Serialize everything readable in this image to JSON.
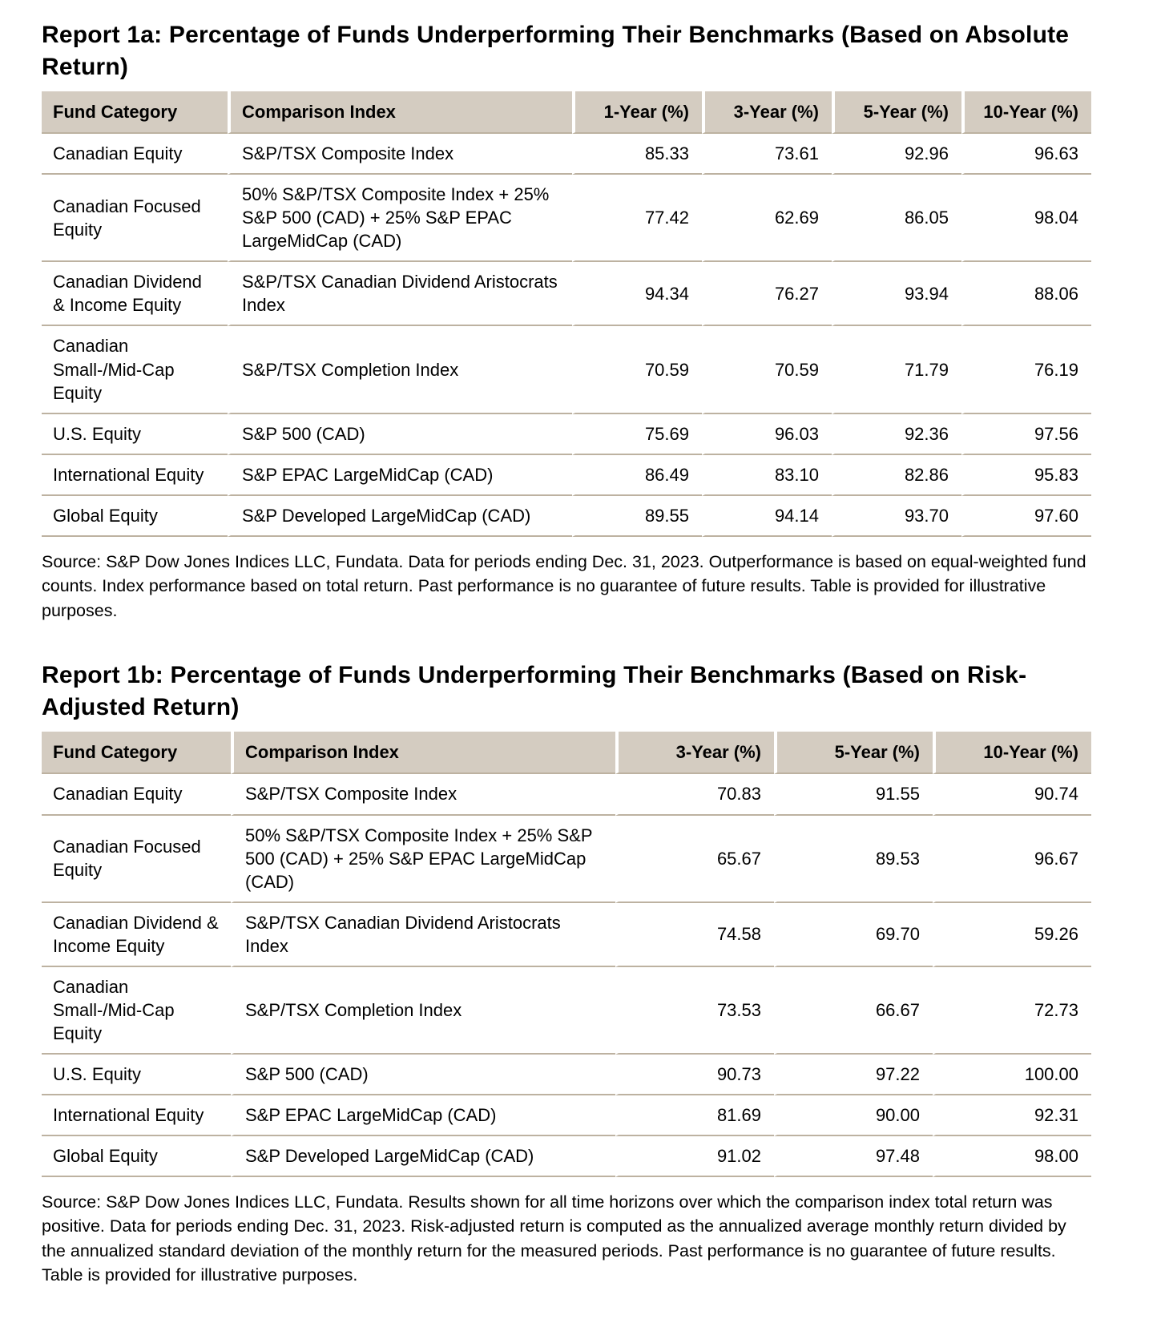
{
  "report_1a": {
    "title": "Report 1a: Percentage of Funds Underperforming Their Benchmarks (Based on Absolute Return)",
    "columns": [
      "Fund Category",
      "Comparison Index",
      "1-Year (%)",
      "3-Year (%)",
      "5-Year (%)",
      "10-Year (%)"
    ],
    "rows": [
      {
        "category": "Canadian Equity",
        "index": "S&P/TSX Composite Index",
        "values": [
          "85.33",
          "73.61",
          "92.96",
          "96.63"
        ]
      },
      {
        "category": "Canadian Focused Equity",
        "index": "50% S&P/TSX Composite Index + 25% S&P 500 (CAD) + 25% S&P EPAC LargeMidCap (CAD)",
        "values": [
          "77.42",
          "62.69",
          "86.05",
          "98.04"
        ]
      },
      {
        "category": "Canadian Dividend & Income Equity",
        "index": "S&P/TSX Canadian Dividend Aristocrats Index",
        "values": [
          "94.34",
          "76.27",
          "93.94",
          "88.06"
        ]
      },
      {
        "category": "Canadian Small-/Mid-Cap Equity",
        "index": "S&P/TSX Completion Index",
        "values": [
          "70.59",
          "70.59",
          "71.79",
          "76.19"
        ]
      },
      {
        "category": "U.S. Equity",
        "index": "S&P 500 (CAD)",
        "values": [
          "75.69",
          "96.03",
          "92.36",
          "97.56"
        ]
      },
      {
        "category": "International Equity",
        "index": "S&P EPAC LargeMidCap (CAD)",
        "values": [
          "86.49",
          "83.10",
          "82.86",
          "95.83"
        ]
      },
      {
        "category": "Global Equity",
        "index": "S&P Developed LargeMidCap (CAD)",
        "values": [
          "89.55",
          "94.14",
          "93.70",
          "97.60"
        ]
      }
    ],
    "source": "Source: S&P Dow Jones Indices LLC, Fundata.  Data for periods ending Dec. 31, 2023.  Outperformance is based on equal-weighted fund counts.  Index performance based on total return.  Past performance is no guarantee of future results.  Table is provided for illustrative purposes."
  },
  "report_1b": {
    "title": "Report 1b: Percentage of Funds Underperforming Their Benchmarks (Based on Risk-Adjusted Return)",
    "columns": [
      "Fund Category",
      "Comparison Index",
      "3-Year (%)",
      "5-Year (%)",
      "10-Year (%)"
    ],
    "rows": [
      {
        "category": "Canadian Equity",
        "index": "S&P/TSX Composite Index",
        "values": [
          "70.83",
          "91.55",
          "90.74"
        ]
      },
      {
        "category": "Canadian Focused Equity",
        "index": "50% S&P/TSX Composite Index + 25% S&P 500 (CAD) + 25% S&P EPAC LargeMidCap (CAD)",
        "values": [
          "65.67",
          "89.53",
          "96.67"
        ]
      },
      {
        "category": "Canadian Dividend & Income Equity",
        "index": "S&P/TSX Canadian Dividend Aristocrats Index",
        "values": [
          "74.58",
          "69.70",
          "59.26"
        ]
      },
      {
        "category": "Canadian Small-/Mid-Cap Equity",
        "index": "S&P/TSX Completion Index",
        "values": [
          "73.53",
          "66.67",
          "72.73"
        ]
      },
      {
        "category": "U.S. Equity",
        "index": "S&P 500 (CAD)",
        "values": [
          "90.73",
          "97.22",
          "100.00"
        ]
      },
      {
        "category": "International Equity",
        "index": "S&P EPAC LargeMidCap (CAD)",
        "values": [
          "81.69",
          "90.00",
          "92.31"
        ]
      },
      {
        "category": "Global Equity",
        "index": "S&P Developed LargeMidCap (CAD)",
        "values": [
          "91.02",
          "97.48",
          "98.00"
        ]
      }
    ],
    "source": "Source: S&P Dow Jones Indices LLC, Fundata.  Results shown for all time horizons over which the comparison index total return was positive.  Data for periods ending Dec. 31, 2023.  Risk-adjusted return is computed as the annualized average monthly return divided by the annualized standard deviation of the monthly return for the measured periods.  Past performance is no guarantee of future results.  Table is provided for illustrative purposes."
  }
}
